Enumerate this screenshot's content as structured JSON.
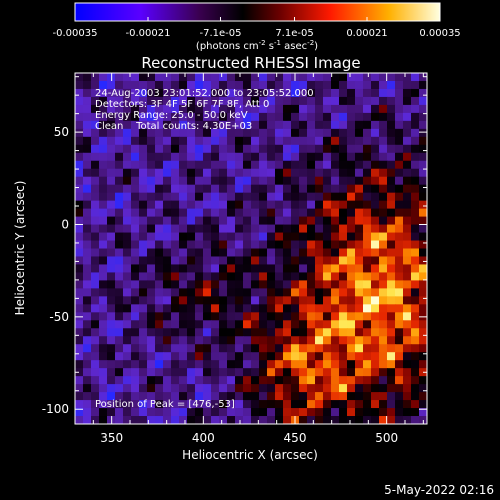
{
  "colorbar": {
    "tick_labels": [
      "-0.00035",
      "-0.00021",
      "-7.1e-05",
      "7.1e-05",
      "0.00021",
      "0.00035"
    ],
    "ticks": [
      -0.00035,
      -0.00021,
      -7.1e-05,
      7.1e-05,
      0.00021,
      0.00035
    ],
    "units_label": "(photons cm",
    "units_sup1": "-2",
    "units_mid": " s",
    "units_sup2": "-1",
    "units_mid2": " asec",
    "units_sup3": "-2",
    "units_end": ")",
    "colormap_stops": [
      "#0000ff",
      "#7a00c8",
      "#2a0033",
      "#000000",
      "#7a0000",
      "#ff2a00",
      "#ffb000",
      "#ffffd0"
    ]
  },
  "image": {
    "title": "Reconstructed RHESSI Image",
    "info_lines": [
      "24-Aug-2003 23:01:52.000 to 23:05:52.000",
      "Detectors: 3F 4F 5F 6F 7F 8F, Att 0",
      "Energy Range: 25.0 - 50.0 keV",
      "Clean    Total counts: 4.30E+03"
    ],
    "peak_label": "Position of Peak = [476,-53]",
    "x_axis": {
      "label": "Heliocentric X (arcsec)",
      "range": [
        330,
        522
      ],
      "ticks": [
        350,
        400,
        450,
        500
      ]
    },
    "y_axis": {
      "label": "Heliocentric Y (arcsec)",
      "range": [
        -108,
        82
      ],
      "ticks": [
        -100,
        -50,
        0,
        50
      ]
    }
  },
  "footer": {
    "timestamp": "5-May-2022 02:16"
  }
}
